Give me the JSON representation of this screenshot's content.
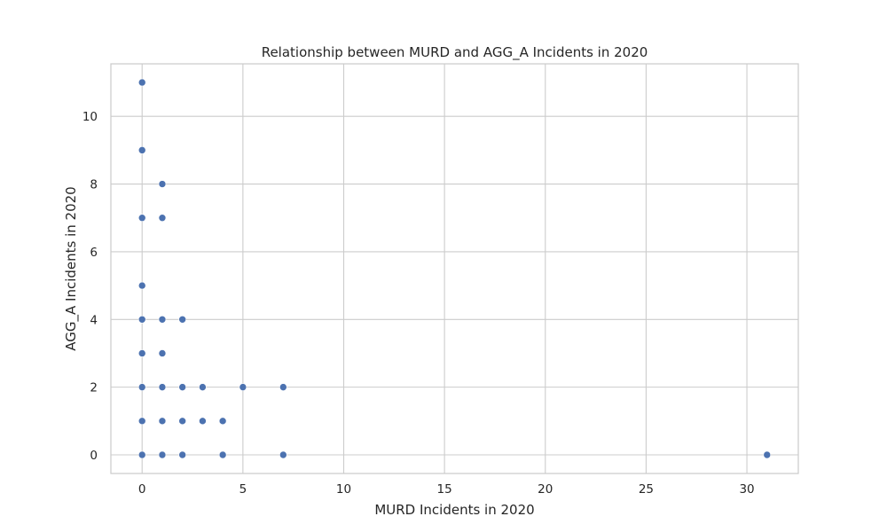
{
  "chart_data": {
    "type": "scatter",
    "title": "Relationship between MURD and AGG_A Incidents in 2020",
    "xlabel": "MURD Incidents in 2020",
    "ylabel": "AGG_A Incidents in 2020",
    "xlim": [
      -1.55,
      32.55
    ],
    "ylim": [
      -0.55,
      11.55
    ],
    "xticks": [
      0,
      5,
      10,
      15,
      20,
      25,
      30
    ],
    "yticks": [
      0,
      2,
      4,
      6,
      8,
      10
    ],
    "grid": true,
    "legend": "none",
    "marker_color": "#4c72b0",
    "points": [
      {
        "x": 0,
        "y": 11
      },
      {
        "x": 0,
        "y": 9
      },
      {
        "x": 0,
        "y": 7
      },
      {
        "x": 0,
        "y": 5
      },
      {
        "x": 0,
        "y": 4
      },
      {
        "x": 0,
        "y": 3
      },
      {
        "x": 0,
        "y": 2
      },
      {
        "x": 0,
        "y": 1
      },
      {
        "x": 0,
        "y": 0
      },
      {
        "x": 1,
        "y": 8
      },
      {
        "x": 1,
        "y": 7
      },
      {
        "x": 1,
        "y": 4
      },
      {
        "x": 1,
        "y": 3
      },
      {
        "x": 1,
        "y": 2
      },
      {
        "x": 1,
        "y": 1
      },
      {
        "x": 1,
        "y": 0
      },
      {
        "x": 2,
        "y": 4
      },
      {
        "x": 2,
        "y": 2
      },
      {
        "x": 2,
        "y": 1
      },
      {
        "x": 2,
        "y": 0
      },
      {
        "x": 3,
        "y": 2
      },
      {
        "x": 3,
        "y": 1
      },
      {
        "x": 4,
        "y": 1
      },
      {
        "x": 4,
        "y": 0
      },
      {
        "x": 5,
        "y": 2
      },
      {
        "x": 7,
        "y": 2
      },
      {
        "x": 7,
        "y": 0
      },
      {
        "x": 31,
        "y": 0
      }
    ]
  }
}
